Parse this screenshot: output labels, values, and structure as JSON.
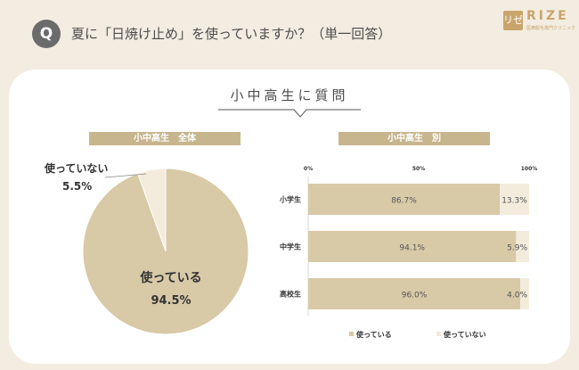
{
  "header": {
    "badge": "Q",
    "question": "夏に「日焼け止め」を使っていますか？（単一回答）",
    "logo_mark": "リゼ",
    "logo_text": "RIZE",
    "logo_sub": "医療脱毛専門クリニック"
  },
  "section_title": "小中高生に質問",
  "colors": {
    "used": "#d8c9a7",
    "not_used": "#f3ebdc",
    "pill": "#c7b58e"
  },
  "chart_data": [
    {
      "type": "pie",
      "title": "小中高生　全体",
      "slices": [
        {
          "label": "使っている",
          "value": 94.5,
          "display": "94.5%"
        },
        {
          "label": "使っていない",
          "value": 5.5,
          "display": "5.5%"
        }
      ]
    },
    {
      "type": "bar",
      "orientation": "horizontal",
      "stacked": true,
      "title": "小中高生　別",
      "categories": [
        "小学生",
        "中学生",
        "高校生"
      ],
      "xlim": [
        0,
        100
      ],
      "xticks": [
        "0%",
        "50%",
        "100%"
      ],
      "legend": "bottom",
      "series": [
        {
          "name": "使っている",
          "values": [
            86.7,
            94.1,
            96.0
          ],
          "labels": [
            "86.7%",
            "94.1%",
            "96.0%"
          ]
        },
        {
          "name": "使っていない",
          "values": [
            13.3,
            5.9,
            4.0
          ],
          "labels": [
            "13.3%",
            "5.9%",
            "4.0%"
          ]
        }
      ]
    }
  ]
}
